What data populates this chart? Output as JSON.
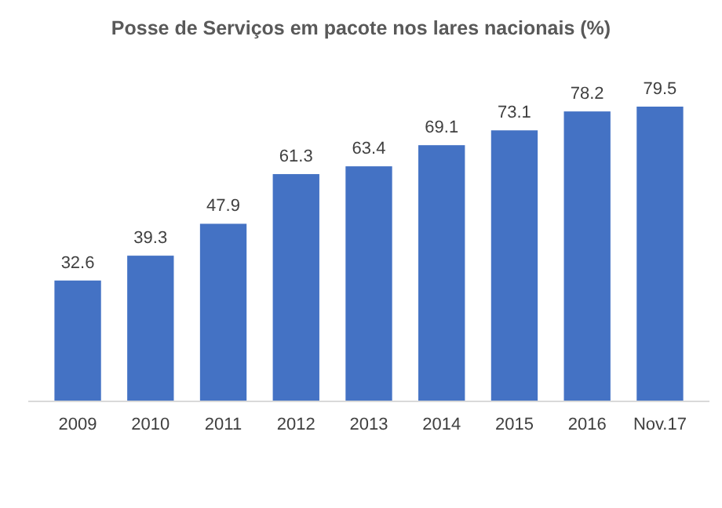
{
  "chart_data": {
    "type": "bar",
    "title": "Posse de Serviços em pacote nos lares nacionais (%)",
    "categories": [
      "2009",
      "2010",
      "2011",
      "2012",
      "2013",
      "2014",
      "2015",
      "2016",
      "Nov.17"
    ],
    "values": [
      32.6,
      39.3,
      47.9,
      61.3,
      63.4,
      69.1,
      73.1,
      78.2,
      79.5
    ],
    "color": "#4472c4",
    "data_labels": true
  }
}
